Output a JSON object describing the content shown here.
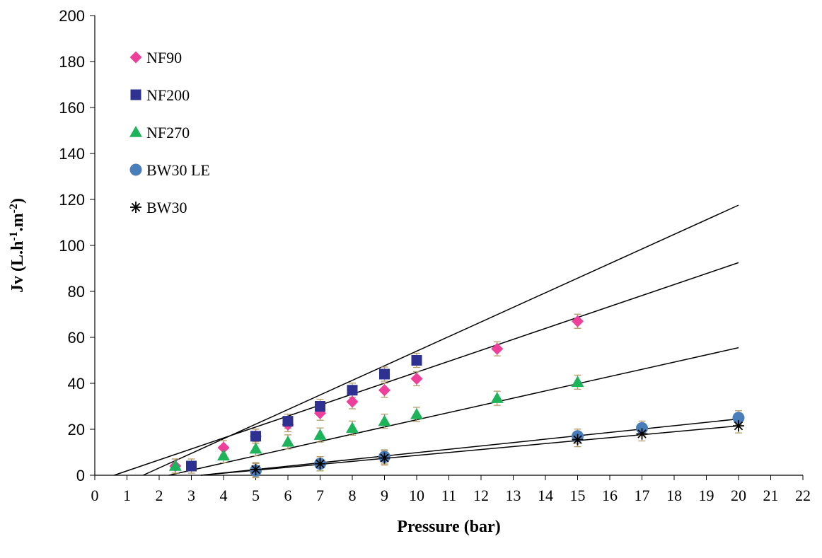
{
  "chart_data": {
    "type": "scatter",
    "title": "",
    "xlabel": "Pressure (bar)",
    "ylabel_main": "Jv (L.h",
    "ylabel_sup1": "-1",
    "ylabel_mid": ".m",
    "ylabel_sup2": "-2",
    "ylabel_end": ")",
    "xlim": [
      0,
      22
    ],
    "ylim": [
      0,
      200
    ],
    "x_ticks": [
      "0",
      "1",
      "2",
      "3",
      "4",
      "5",
      "6",
      "7",
      "8",
      "9",
      "10",
      "11",
      "12",
      "13",
      "14",
      "15",
      "16",
      "17",
      "18",
      "19",
      "20",
      "21",
      "22"
    ],
    "y_ticks": [
      "0",
      "20",
      "40",
      "60",
      "80",
      "100",
      "120",
      "140",
      "160",
      "180",
      "200"
    ],
    "legend_position": "top-left",
    "grid": false,
    "series": [
      {
        "name": "NF90",
        "marker": "diamond",
        "color": "#ee3f9a",
        "points": [
          [
            2.5,
            4
          ],
          [
            4,
            12
          ],
          [
            5,
            17
          ],
          [
            6,
            22
          ],
          [
            7,
            27
          ],
          [
            8,
            32
          ],
          [
            9,
            37
          ],
          [
            10,
            42
          ],
          [
            12.5,
            55
          ],
          [
            15,
            67
          ]
        ],
        "fit": [
          [
            0.6,
            0
          ],
          [
            20,
            92.5
          ]
        ]
      },
      {
        "name": "NF200",
        "marker": "square",
        "color": "#2e3192",
        "points": [
          [
            3,
            4
          ],
          [
            5,
            17
          ],
          [
            6,
            23.5
          ],
          [
            7,
            30
          ],
          [
            8,
            37
          ],
          [
            9,
            44
          ],
          [
            10,
            50
          ]
        ],
        "fit": [
          [
            1.5,
            0
          ],
          [
            20,
            117.5
          ]
        ]
      },
      {
        "name": "NF270",
        "marker": "triangle",
        "color": "#1db35a",
        "points": [
          [
            2.5,
            4
          ],
          [
            4,
            8.5
          ],
          [
            5,
            11.5
          ],
          [
            6,
            14.5
          ],
          [
            7,
            17.5
          ],
          [
            8,
            20.5
          ],
          [
            9,
            23.5
          ],
          [
            10,
            26.5
          ],
          [
            12.5,
            33.5
          ],
          [
            15,
            40.5
          ]
        ],
        "fit": [
          [
            2.3,
            0
          ],
          [
            20,
            55.5
          ]
        ]
      },
      {
        "name": "BW30 LE",
        "marker": "circle",
        "color": "#4a7ebb",
        "points": [
          [
            5,
            2
          ],
          [
            7,
            5
          ],
          [
            9,
            8
          ],
          [
            15,
            17
          ],
          [
            17,
            20.5
          ],
          [
            20,
            25
          ]
        ],
        "fit": [
          [
            3.3,
            0
          ],
          [
            20,
            24.5
          ]
        ]
      },
      {
        "name": "BW30",
        "marker": "asterisk",
        "color": "#000000",
        "points": [
          [
            5,
            2.5
          ],
          [
            7,
            5
          ],
          [
            9,
            7.5
          ],
          [
            15,
            15.5
          ],
          [
            17,
            18
          ],
          [
            20,
            21.5
          ]
        ],
        "fit": [
          [
            3.3,
            0
          ],
          [
            20,
            21.5
          ]
        ]
      }
    ]
  }
}
